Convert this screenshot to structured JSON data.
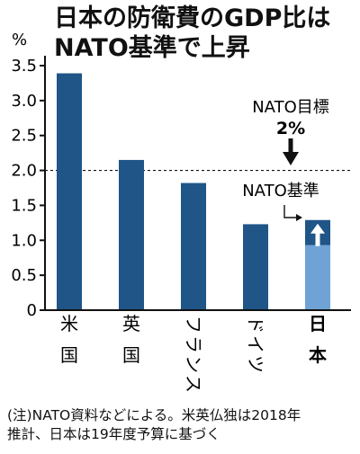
{
  "title": {
    "line1": "日本の防衛費のGDP比は",
    "line2": "NATO基準で上昇"
  },
  "note": {
    "line1": "(注)NATO資料などによる。米英仏独は2018年",
    "line2": "推計、日本は19年度予算に基づく"
  },
  "colors": {
    "bar": "#1f5587",
    "japan_base": "#6fa3d6",
    "japan_nato": "#1f5587",
    "axis": "#111111"
  },
  "chart_data": {
    "type": "bar",
    "ylabel": "%",
    "ylim": [
      0,
      3.5
    ],
    "yticks": [
      "0",
      "0.5",
      "1.0",
      "1.5",
      "2.0",
      "2.5",
      "3.0",
      "3.5"
    ],
    "categories": [
      "米国",
      "英国",
      "フランス",
      "ドイツ",
      "日本"
    ],
    "values": [
      3.39,
      2.15,
      1.82,
      1.23,
      1.29
    ],
    "japan_base_value": 0.93,
    "reference_line": {
      "value": 2.0,
      "style": "dashed"
    },
    "annotations": {
      "target_label": "NATO目標",
      "target_value": "2%",
      "nato_standard_label": "NATO基準"
    }
  }
}
